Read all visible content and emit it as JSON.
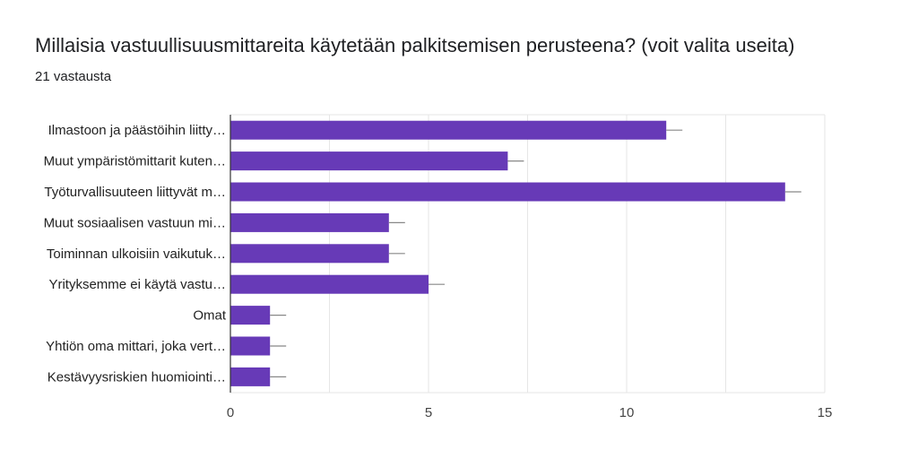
{
  "header": {
    "title": "Millaisia vastuullisuusmittareita käytetään palkitsemisen perusteena? (voit valita useita)",
    "subtitle": "21 vastausta"
  },
  "colors": {
    "bar": "#673ab7",
    "grid": "#e6e6e6",
    "axis": "#333333",
    "errorbar": "#888888"
  },
  "chart_data": {
    "type": "bar",
    "orientation": "horizontal",
    "categories": [
      "Ilmastoon ja päästöihin liitty…",
      "Muut ympäristömittarit kuten…",
      "Työturvallisuuteen liittyvät m…",
      "Muut sosiaalisen vastuun mi…",
      "Toiminnan ulkoisiin vaikutuk…",
      "Yrityksemme ei käytä vastu…",
      "Omat",
      "Yhtiön oma mittari, joka vert…",
      "Kestävyysriskien huomiointi…"
    ],
    "values": [
      11,
      7,
      14,
      4,
      4,
      5,
      1,
      1,
      1
    ],
    "xlim": [
      0,
      15
    ],
    "xticks": [
      0,
      5,
      10,
      15
    ],
    "grid": true
  }
}
